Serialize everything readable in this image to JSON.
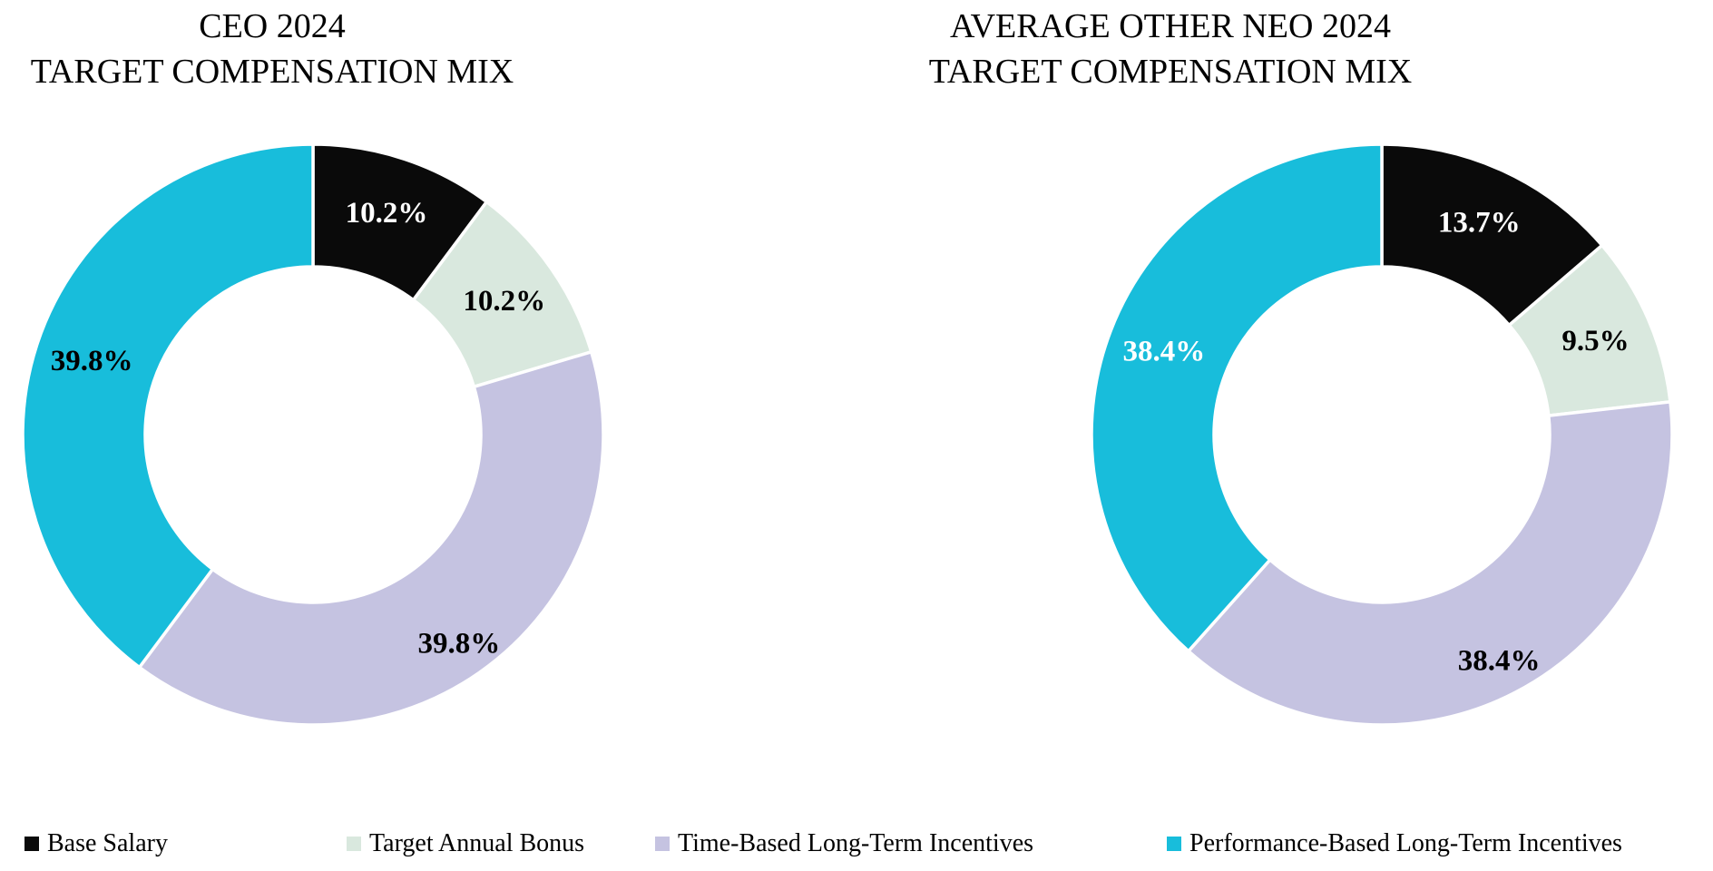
{
  "figure_title": "2024 Target Compensation Mix",
  "chart_data": [
    {
      "type": "pie",
      "subtype": "donut",
      "title_line1": "CEO 2024",
      "title_line2": "TARGET COMPENSATION MIX",
      "categories": [
        "Base Salary",
        "Target Annual Bonus",
        "Time-Based Long-Term Incentives",
        "Performance-Based Long-Term Incentives"
      ],
      "values": [
        10.2,
        10.2,
        39.8,
        39.8
      ],
      "labels": [
        "10.2%",
        "10.2%",
        "39.8%",
        "39.8%"
      ],
      "colors": [
        "#0a0a0a",
        "#d9e8de",
        "#c5c3e1",
        "#18bddb"
      ],
      "label_colors": [
        "#ffffff",
        "#000000",
        "#000000",
        "#000000"
      ],
      "start_angle_deg": 0,
      "direction": "clockwise",
      "legend_position": "bottom",
      "grid": "off"
    },
    {
      "type": "pie",
      "subtype": "donut",
      "title_line1": "AVERAGE OTHER NEO 2024",
      "title_line2": "TARGET COMPENSATION MIX",
      "categories": [
        "Base Salary",
        "Target Annual Bonus",
        "Time-Based Long-Term Incentives",
        "Performance-Based Long-Term Incentives"
      ],
      "values": [
        13.7,
        9.5,
        38.4,
        38.4
      ],
      "labels": [
        "13.7%",
        "9.5%",
        "38.4%",
        "38.4%"
      ],
      "colors": [
        "#0a0a0a",
        "#d9e8de",
        "#c5c3e1",
        "#18bddb"
      ],
      "label_colors": [
        "#ffffff",
        "#000000",
        "#000000",
        "#ffffff"
      ],
      "start_angle_deg": 0,
      "direction": "clockwise",
      "legend_position": "bottom",
      "grid": "off"
    }
  ],
  "legend": [
    {
      "label": "Base Salary",
      "color": "#0a0a0a"
    },
    {
      "label": "Target Annual Bonus",
      "color": "#d9e8de"
    },
    {
      "label": "Time-Based Long-Term Incentives",
      "color": "#c5c3e1"
    },
    {
      "label": "Performance-Based Long-Term Incentives",
      "color": "#18bddb"
    }
  ]
}
